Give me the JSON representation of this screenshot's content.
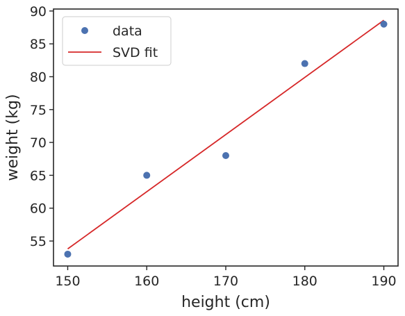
{
  "chart_data": {
    "type": "scatter",
    "title": "",
    "xlabel": "height (cm)",
    "ylabel": "weight (kg)",
    "xlim": [
      148.2,
      191.8
    ],
    "ylim": [
      51.2,
      90.3
    ],
    "xticks": [
      150,
      160,
      170,
      180,
      190
    ],
    "yticks": [
      55,
      60,
      65,
      70,
      75,
      80,
      85,
      90
    ],
    "grid": false,
    "legend_position": "upper-left",
    "series": [
      {
        "name": "data",
        "kind": "scatter",
        "color": "#4c72b0",
        "x": [
          150,
          160,
          170,
          180,
          190
        ],
        "y": [
          53,
          65,
          68,
          82,
          88
        ]
      },
      {
        "name": "SVD fit",
        "kind": "line",
        "color": "#d62728",
        "x": [
          150,
          190
        ],
        "y": [
          53.8,
          88.6
        ]
      }
    ]
  }
}
